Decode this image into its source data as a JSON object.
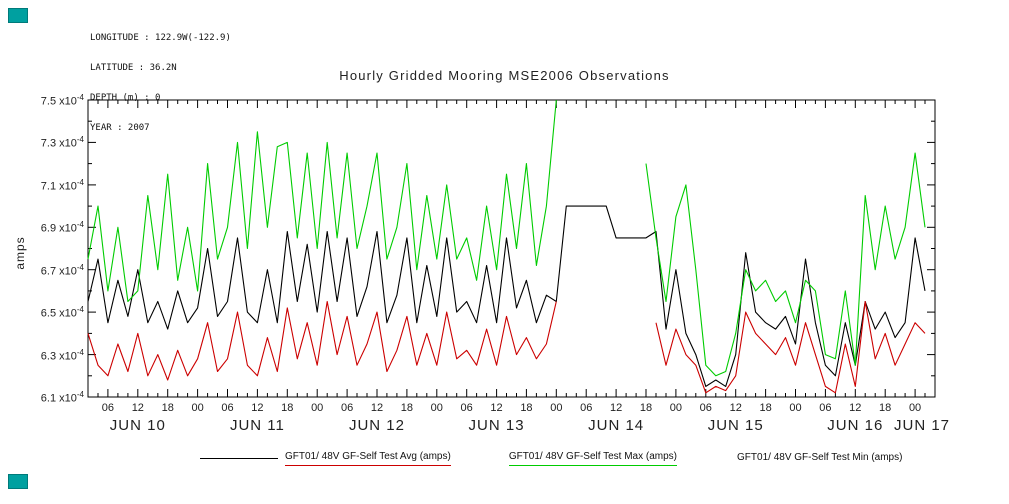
{
  "colors": {
    "widget_teal": "#00a0a0",
    "axis": "#000000",
    "avg_line": "#000000",
    "max_line": "#cc0000",
    "min_line": "#00cc00"
  },
  "metadata": {
    "longitude": "LONGITUDE : 122.9W(-122.9)",
    "latitude": "LATITUDE : 36.2N",
    "depth": "DEPTH (m) : 0",
    "year": "YEAR : 2007"
  },
  "chart_data": {
    "type": "line",
    "title": "Hourly Gridded Mooring MSE2006 Observations",
    "ylabel": "amps",
    "xlabel": "",
    "grid": false,
    "legend_position": "bottom",
    "ylim": [
      6.1,
      7.5
    ],
    "y_tick_values": [
      6.1,
      6.3,
      6.5,
      6.7,
      6.9,
      7.1,
      7.3,
      7.5
    ],
    "y_tick_suffix": "x10",
    "y_tick_exp": "-4",
    "y_units_note": "tick values are amps x 10^-4",
    "xlim": [
      2,
      172
    ],
    "x_start": 2,
    "x_step": 2,
    "x_axis_note": "hours from JUN 10 00:00 2007",
    "x_hour_ticks": [
      {
        "t": 6,
        "label": "06"
      },
      {
        "t": 12,
        "label": "12"
      },
      {
        "t": 18,
        "label": "18"
      },
      {
        "t": 24,
        "label": "00"
      },
      {
        "t": 30,
        "label": "06"
      },
      {
        "t": 36,
        "label": "12"
      },
      {
        "t": 42,
        "label": "18"
      },
      {
        "t": 48,
        "label": "00"
      },
      {
        "t": 54,
        "label": "06"
      },
      {
        "t": 60,
        "label": "12"
      },
      {
        "t": 66,
        "label": "18"
      },
      {
        "t": 72,
        "label": "00"
      },
      {
        "t": 78,
        "label": "06"
      },
      {
        "t": 84,
        "label": "12"
      },
      {
        "t": 90,
        "label": "18"
      },
      {
        "t": 96,
        "label": "00"
      },
      {
        "t": 102,
        "label": "06"
      },
      {
        "t": 108,
        "label": "12"
      },
      {
        "t": 114,
        "label": "18"
      },
      {
        "t": 120,
        "label": "00"
      },
      {
        "t": 126,
        "label": "06"
      },
      {
        "t": 132,
        "label": "12"
      },
      {
        "t": 138,
        "label": "18"
      },
      {
        "t": 144,
        "label": "00"
      },
      {
        "t": 150,
        "label": "06"
      },
      {
        "t": 156,
        "label": "12"
      },
      {
        "t": 162,
        "label": "18"
      },
      {
        "t": 168,
        "label": "00"
      }
    ],
    "x_day_ticks": [
      {
        "t": 12,
        "label": "JUN 10"
      },
      {
        "t": 36,
        "label": "JUN 11"
      },
      {
        "t": 60,
        "label": "JUN 12"
      },
      {
        "t": 84,
        "label": "JUN 13"
      },
      {
        "t": 108,
        "label": "JUN 14"
      },
      {
        "t": 132,
        "label": "JUN 15"
      },
      {
        "t": 156,
        "label": "JUN 16"
      },
      {
        "t": 180,
        "label": "JUN 17"
      }
    ],
    "series": [
      {
        "name": "GFT01/ 48V GF-Self Test Avg (amps)",
        "color": "#000000",
        "values": [
          6.55,
          6.75,
          6.45,
          6.65,
          6.48,
          6.7,
          6.45,
          6.55,
          6.42,
          6.6,
          6.45,
          6.52,
          6.8,
          6.48,
          6.55,
          6.85,
          6.5,
          6.45,
          6.7,
          6.45,
          6.88,
          6.55,
          6.82,
          6.5,
          6.88,
          6.55,
          6.85,
          6.48,
          6.62,
          6.88,
          6.45,
          6.58,
          6.85,
          6.45,
          6.72,
          6.48,
          6.85,
          6.5,
          6.55,
          6.45,
          6.72,
          6.45,
          6.85,
          6.52,
          6.65,
          6.45,
          6.58,
          6.55,
          7.0,
          7.0,
          7.0,
          7.0,
          7.0,
          6.85,
          6.85,
          6.85,
          6.85,
          6.88,
          6.42,
          6.7,
          6.4,
          6.3,
          6.15,
          6.18,
          6.15,
          6.3,
          6.78,
          6.5,
          6.45,
          6.42,
          6.48,
          6.35,
          6.75,
          6.45,
          6.25,
          6.2,
          6.45,
          6.25,
          6.55,
          6.42,
          6.5,
          6.38,
          6.45,
          6.85,
          6.6
        ]
      },
      {
        "name": "GFT01/ 48V GF-Self Test Max (amps)",
        "color": "#cc0000",
        "values": [
          6.4,
          6.25,
          6.2,
          6.35,
          6.22,
          6.4,
          6.2,
          6.3,
          6.18,
          6.32,
          6.2,
          6.28,
          6.45,
          6.22,
          6.28,
          6.5,
          6.25,
          6.2,
          6.38,
          6.22,
          6.52,
          6.28,
          6.45,
          6.25,
          6.55,
          6.3,
          6.48,
          6.25,
          6.35,
          6.5,
          6.22,
          6.32,
          6.48,
          6.25,
          6.4,
          6.25,
          6.5,
          6.28,
          6.32,
          6.25,
          6.42,
          6.25,
          6.48,
          6.3,
          6.38,
          6.28,
          6.35,
          6.55,
          null,
          null,
          null,
          null,
          null,
          null,
          null,
          null,
          null,
          6.45,
          6.25,
          6.42,
          6.3,
          6.25,
          6.12,
          6.15,
          6.13,
          6.2,
          6.5,
          6.4,
          6.35,
          6.3,
          6.38,
          6.25,
          6.45,
          6.3,
          6.15,
          6.12,
          6.35,
          6.15,
          6.55,
          6.28,
          6.4,
          6.25,
          6.35,
          6.45,
          6.4
        ]
      },
      {
        "name": "GFT01/ 48V GF-Self Test Min (amps)",
        "color": "#00cc00",
        "values": [
          6.75,
          7.0,
          6.6,
          6.9,
          6.55,
          6.6,
          7.05,
          6.7,
          7.15,
          6.65,
          6.9,
          6.6,
          7.2,
          6.75,
          6.9,
          7.3,
          6.8,
          7.35,
          6.9,
          7.28,
          7.3,
          6.85,
          7.25,
          6.8,
          7.3,
          6.85,
          7.25,
          6.8,
          7.0,
          7.25,
          6.75,
          6.9,
          7.2,
          6.7,
          7.05,
          6.75,
          7.1,
          6.75,
          6.85,
          6.65,
          7.0,
          6.7,
          7.15,
          6.8,
          7.2,
          6.72,
          7.0,
          7.5,
          null,
          null,
          null,
          null,
          null,
          null,
          null,
          null,
          7.2,
          6.85,
          6.55,
          6.95,
          7.1,
          6.7,
          6.25,
          6.2,
          6.22,
          6.4,
          6.7,
          6.6,
          6.65,
          6.55,
          6.6,
          6.45,
          6.65,
          6.6,
          6.3,
          6.28,
          6.6,
          6.25,
          7.05,
          6.7,
          7.0,
          6.75,
          6.9,
          7.25,
          6.9
        ]
      }
    ],
    "legend": [
      {
        "label": "GFT01/ 48V GF-Self Test Avg (amps)"
      },
      {
        "label": "GFT01/ 48V GF-Self Test Max (amps)"
      },
      {
        "label": "GFT01/ 48V GF-Self Test Min (amps)"
      }
    ]
  }
}
